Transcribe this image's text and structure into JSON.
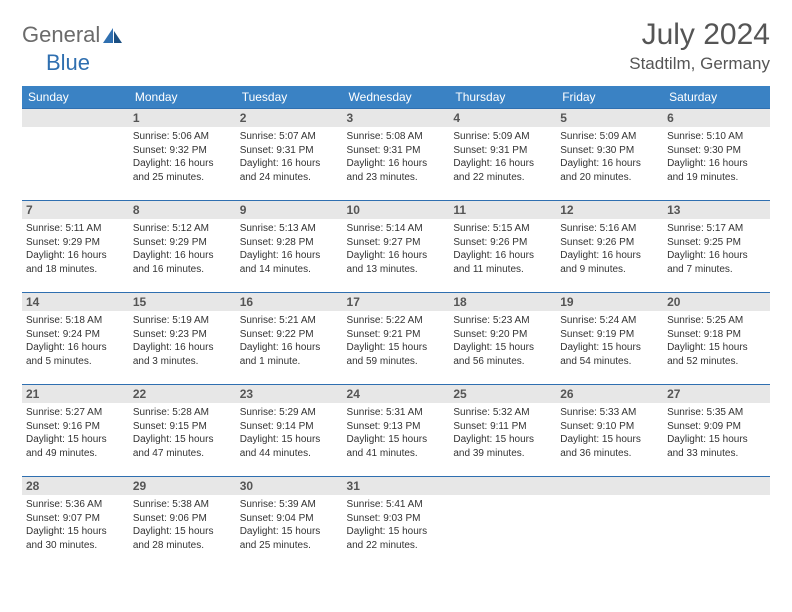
{
  "logo": {
    "general": "General",
    "blue": "Blue"
  },
  "title": "July 2024",
  "location": "Stadtilm, Germany",
  "colors": {
    "header_bg": "#3a82c4",
    "header_text": "#ffffff",
    "row_border": "#2f6fb0",
    "daynum_bg": "#e7e7e7",
    "text": "#333333",
    "logo_gray": "#6b6b6b",
    "logo_blue": "#2f6fb0"
  },
  "weekdays": [
    "Sunday",
    "Monday",
    "Tuesday",
    "Wednesday",
    "Thursday",
    "Friday",
    "Saturday"
  ],
  "grid": [
    [
      null,
      {
        "n": "1",
        "sr": "5:06 AM",
        "ss": "9:32 PM",
        "dl": "16 hours and 25 minutes."
      },
      {
        "n": "2",
        "sr": "5:07 AM",
        "ss": "9:31 PM",
        "dl": "16 hours and 24 minutes."
      },
      {
        "n": "3",
        "sr": "5:08 AM",
        "ss": "9:31 PM",
        "dl": "16 hours and 23 minutes."
      },
      {
        "n": "4",
        "sr": "5:09 AM",
        "ss": "9:31 PM",
        "dl": "16 hours and 22 minutes."
      },
      {
        "n": "5",
        "sr": "5:09 AM",
        "ss": "9:30 PM",
        "dl": "16 hours and 20 minutes."
      },
      {
        "n": "6",
        "sr": "5:10 AM",
        "ss": "9:30 PM",
        "dl": "16 hours and 19 minutes."
      }
    ],
    [
      {
        "n": "7",
        "sr": "5:11 AM",
        "ss": "9:29 PM",
        "dl": "16 hours and 18 minutes."
      },
      {
        "n": "8",
        "sr": "5:12 AM",
        "ss": "9:29 PM",
        "dl": "16 hours and 16 minutes."
      },
      {
        "n": "9",
        "sr": "5:13 AM",
        "ss": "9:28 PM",
        "dl": "16 hours and 14 minutes."
      },
      {
        "n": "10",
        "sr": "5:14 AM",
        "ss": "9:27 PM",
        "dl": "16 hours and 13 minutes."
      },
      {
        "n": "11",
        "sr": "5:15 AM",
        "ss": "9:26 PM",
        "dl": "16 hours and 11 minutes."
      },
      {
        "n": "12",
        "sr": "5:16 AM",
        "ss": "9:26 PM",
        "dl": "16 hours and 9 minutes."
      },
      {
        "n": "13",
        "sr": "5:17 AM",
        "ss": "9:25 PM",
        "dl": "16 hours and 7 minutes."
      }
    ],
    [
      {
        "n": "14",
        "sr": "5:18 AM",
        "ss": "9:24 PM",
        "dl": "16 hours and 5 minutes."
      },
      {
        "n": "15",
        "sr": "5:19 AM",
        "ss": "9:23 PM",
        "dl": "16 hours and 3 minutes."
      },
      {
        "n": "16",
        "sr": "5:21 AM",
        "ss": "9:22 PM",
        "dl": "16 hours and 1 minute."
      },
      {
        "n": "17",
        "sr": "5:22 AM",
        "ss": "9:21 PM",
        "dl": "15 hours and 59 minutes."
      },
      {
        "n": "18",
        "sr": "5:23 AM",
        "ss": "9:20 PM",
        "dl": "15 hours and 56 minutes."
      },
      {
        "n": "19",
        "sr": "5:24 AM",
        "ss": "9:19 PM",
        "dl": "15 hours and 54 minutes."
      },
      {
        "n": "20",
        "sr": "5:25 AM",
        "ss": "9:18 PM",
        "dl": "15 hours and 52 minutes."
      }
    ],
    [
      {
        "n": "21",
        "sr": "5:27 AM",
        "ss": "9:16 PM",
        "dl": "15 hours and 49 minutes."
      },
      {
        "n": "22",
        "sr": "5:28 AM",
        "ss": "9:15 PM",
        "dl": "15 hours and 47 minutes."
      },
      {
        "n": "23",
        "sr": "5:29 AM",
        "ss": "9:14 PM",
        "dl": "15 hours and 44 minutes."
      },
      {
        "n": "24",
        "sr": "5:31 AM",
        "ss": "9:13 PM",
        "dl": "15 hours and 41 minutes."
      },
      {
        "n": "25",
        "sr": "5:32 AM",
        "ss": "9:11 PM",
        "dl": "15 hours and 39 minutes."
      },
      {
        "n": "26",
        "sr": "5:33 AM",
        "ss": "9:10 PM",
        "dl": "15 hours and 36 minutes."
      },
      {
        "n": "27",
        "sr": "5:35 AM",
        "ss": "9:09 PM",
        "dl": "15 hours and 33 minutes."
      }
    ],
    [
      {
        "n": "28",
        "sr": "5:36 AM",
        "ss": "9:07 PM",
        "dl": "15 hours and 30 minutes."
      },
      {
        "n": "29",
        "sr": "5:38 AM",
        "ss": "9:06 PM",
        "dl": "15 hours and 28 minutes."
      },
      {
        "n": "30",
        "sr": "5:39 AM",
        "ss": "9:04 PM",
        "dl": "15 hours and 25 minutes."
      },
      {
        "n": "31",
        "sr": "5:41 AM",
        "ss": "9:03 PM",
        "dl": "15 hours and 22 minutes."
      },
      null,
      null,
      null
    ]
  ],
  "labels": {
    "sunrise": "Sunrise:",
    "sunset": "Sunset:",
    "daylight": "Daylight:"
  }
}
